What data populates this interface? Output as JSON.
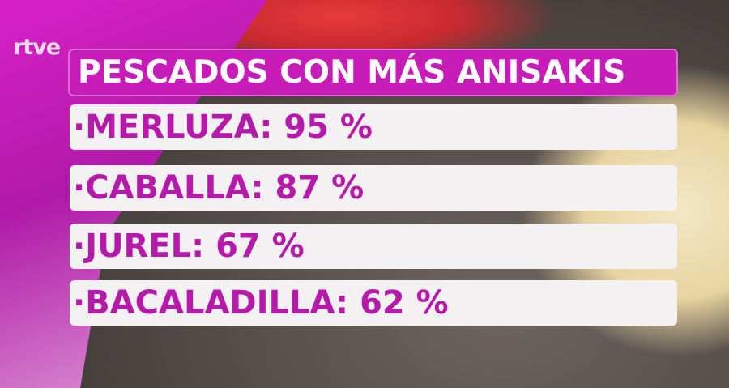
{
  "logo": "rtve",
  "title": "PESCADOS CON MÁS ANISAKIS",
  "items": [
    {
      "label": "·MERLUZA: 95 %",
      "fish": "MERLUZA",
      "percent": 95
    },
    {
      "label": "·CABALLA: 87 %",
      "fish": "CABALLA",
      "percent": 87
    },
    {
      "label": "·JUREL: 67 %",
      "fish": "JUREL",
      "percent": 67
    },
    {
      "label": "·BACALADILLA: 62 %",
      "fish": "BACALADILLA",
      "percent": 62
    }
  ],
  "colors": {
    "title_bg": "#c81cb8",
    "text": "#b51aaa",
    "row_bg": "#f4f1f2"
  }
}
